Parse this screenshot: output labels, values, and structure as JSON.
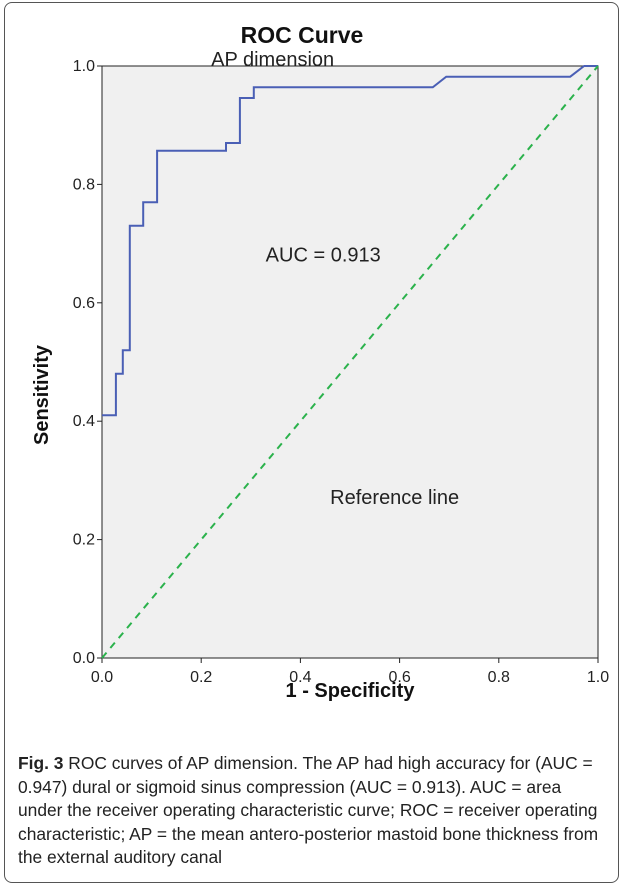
{
  "chart_data": {
    "type": "line",
    "title": "ROC Curve",
    "xlabel": "1 - Specificity",
    "ylabel": "Sensitivity",
    "xlim": [
      0.0,
      1.0
    ],
    "ylim": [
      0.0,
      1.0
    ],
    "xticks": [
      "0.0",
      "0.2",
      "0.4",
      "0.6",
      "0.8",
      "1.0"
    ],
    "yticks": [
      "0.0",
      "0.2",
      "0.4",
      "0.6",
      "0.8",
      "1.0"
    ],
    "grid": false,
    "series": [
      {
        "name": "AP dimension",
        "style": "step",
        "color": "#4a5fb5",
        "points": [
          [
            0.0,
            0.41
          ],
          [
            0.028,
            0.41
          ],
          [
            0.028,
            0.43
          ],
          [
            0.028,
            0.48
          ],
          [
            0.042,
            0.48
          ],
          [
            0.042,
            0.52
          ],
          [
            0.056,
            0.52
          ],
          [
            0.056,
            0.73
          ],
          [
            0.083,
            0.73
          ],
          [
            0.083,
            0.77
          ],
          [
            0.111,
            0.77
          ],
          [
            0.111,
            0.857
          ],
          [
            0.25,
            0.857
          ],
          [
            0.25,
            0.87
          ],
          [
            0.278,
            0.87
          ],
          [
            0.278,
            0.893
          ],
          [
            0.278,
            0.946
          ],
          [
            0.306,
            0.946
          ],
          [
            0.306,
            0.964
          ],
          [
            0.667,
            0.964
          ],
          [
            0.694,
            0.982
          ],
          [
            0.944,
            0.982
          ],
          [
            0.972,
            1.0
          ],
          [
            1.0,
            1.0
          ]
        ]
      },
      {
        "name": "Reference line",
        "style": "dashed",
        "color": "#2bb24c",
        "points": [
          [
            0.0,
            0.0
          ],
          [
            1.0,
            1.0
          ]
        ]
      }
    ],
    "annotations": [
      {
        "text": "AP dimension",
        "x": 0.22,
        "y": 1.0
      },
      {
        "text": "AUC = 0.913",
        "x": 0.33,
        "y": 0.67
      },
      {
        "text": "Reference line",
        "x": 0.46,
        "y": 0.26
      }
    ],
    "plot_background": "#f0f0f0"
  },
  "caption": {
    "fig_label": "Fig. 3",
    "text": " ROC curves of AP dimension. The AP had high accuracy for (AUC = 0.947) dural or sigmoid sinus compression (AUC = 0.913). AUC = area under the receiver operating characteristic curve; ROC = receiver operating characteristic; AP = the mean antero-posterior mastoid bone thickness from the external auditory canal"
  }
}
